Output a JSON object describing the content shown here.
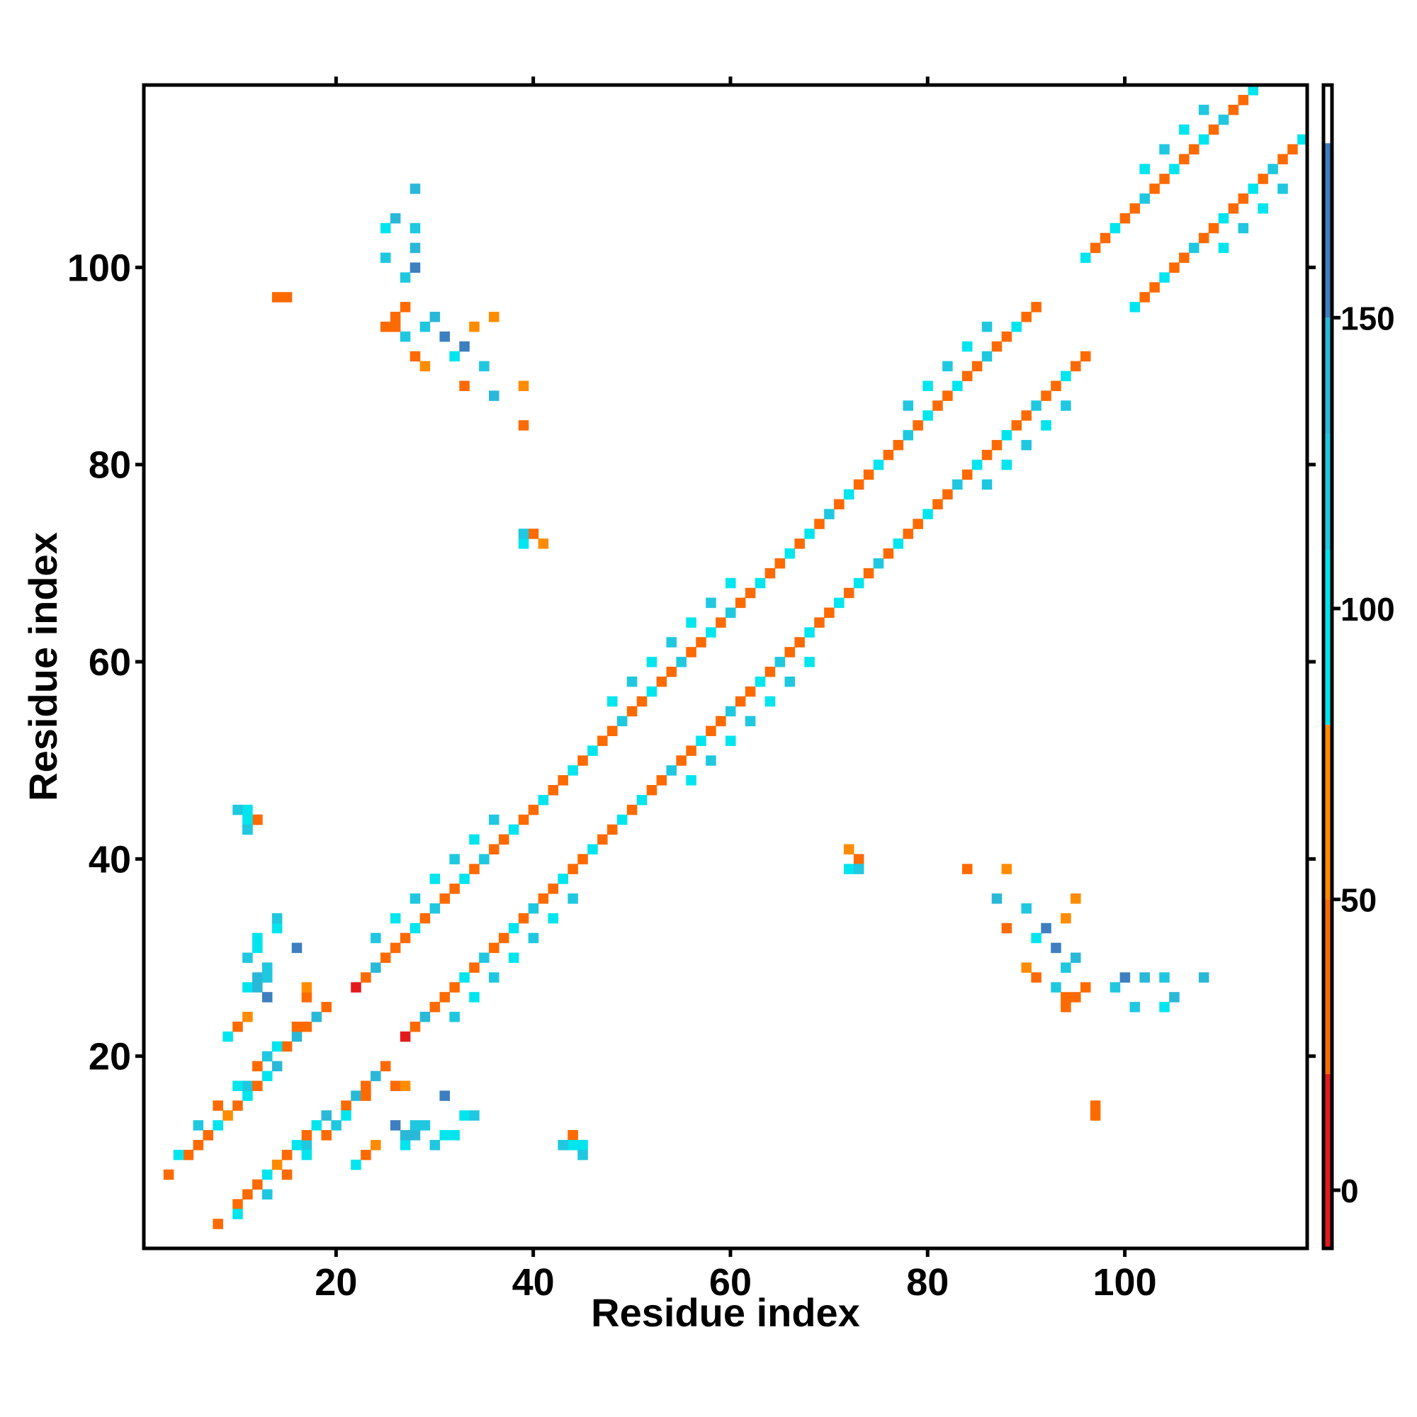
{
  "chart_data": {
    "type": "heatmap",
    "title": "",
    "xlabel": "Residue index",
    "ylabel": "Residue index",
    "xlim": [
      1,
      118
    ],
    "ylim": [
      1,
      118
    ],
    "x_ticks": [
      "20",
      "40",
      "60",
      "80",
      "100"
    ],
    "y_ticks": [
      "20",
      "40",
      "60",
      "80",
      "100"
    ],
    "x_tick_values": [
      20,
      40,
      60,
      80,
      100
    ],
    "y_tick_values": [
      20,
      40,
      60,
      80,
      100
    ],
    "symmetric": true,
    "grid": false,
    "colorbar": {
      "range": [
        -10,
        190
      ],
      "ticks": [
        "0",
        "50",
        "100",
        "150"
      ],
      "tick_values": [
        0,
        50,
        100,
        150
      ],
      "bands": [
        {
          "from": -10,
          "to": 20,
          "color": "#e31a1c"
        },
        {
          "from": 20,
          "to": 50,
          "color": "#fd6a02"
        },
        {
          "from": 50,
          "to": 80,
          "color": "#ff8c00"
        },
        {
          "from": 80,
          "to": 110,
          "color": "#00e5ee"
        },
        {
          "from": 110,
          "to": 130,
          "color": "#1fc8e0"
        },
        {
          "from": 130,
          "to": 150,
          "color": "#2ab8d8"
        },
        {
          "from": 150,
          "to": 180,
          "color": "#3d7fc0"
        },
        {
          "from": 180,
          "to": 190,
          "color": "#ffffff"
        }
      ]
    },
    "cells": [
      [
        3,
        8,
        25
      ],
      [
        5,
        10,
        45
      ],
      [
        6,
        11,
        30
      ],
      [
        7,
        12,
        45
      ],
      [
        8,
        13,
        100
      ],
      [
        9,
        14,
        60
      ],
      [
        10,
        15,
        35
      ],
      [
        11,
        16,
        100
      ],
      [
        11,
        17,
        120
      ],
      [
        12,
        17,
        40
      ],
      [
        13,
        18,
        100
      ],
      [
        14,
        19,
        135
      ],
      [
        13,
        20,
        110
      ],
      [
        15,
        21,
        20
      ],
      [
        16,
        22,
        130
      ],
      [
        17,
        23,
        45
      ],
      [
        18,
        24,
        130
      ],
      [
        19,
        25,
        40
      ],
      [
        22,
        27,
        15
      ],
      [
        23,
        28,
        30
      ],
      [
        24,
        29,
        130
      ],
      [
        25,
        30,
        35
      ],
      [
        26,
        31,
        30
      ],
      [
        27,
        32,
        45
      ],
      [
        28,
        33,
        100
      ],
      [
        29,
        34,
        40
      ],
      [
        30,
        35,
        125
      ],
      [
        31,
        36,
        35
      ],
      [
        32,
        37,
        40
      ],
      [
        33,
        38,
        100
      ],
      [
        34,
        39,
        35
      ],
      [
        35,
        40,
        110
      ],
      [
        36,
        41,
        35
      ],
      [
        37,
        42,
        25
      ],
      [
        38,
        43,
        100
      ],
      [
        39,
        44,
        45
      ],
      [
        40,
        45,
        40
      ],
      [
        41,
        46,
        100
      ],
      [
        42,
        47,
        35
      ],
      [
        43,
        48,
        45
      ],
      [
        44,
        49,
        100
      ],
      [
        45,
        50,
        40
      ],
      [
        46,
        51,
        100
      ],
      [
        47,
        52,
        30
      ],
      [
        48,
        53,
        35
      ],
      [
        49,
        54,
        110
      ],
      [
        50,
        55,
        40
      ],
      [
        51,
        56,
        35
      ],
      [
        52,
        57,
        100
      ],
      [
        53,
        58,
        35
      ],
      [
        54,
        59,
        40
      ],
      [
        55,
        60,
        120
      ],
      [
        56,
        61,
        35
      ],
      [
        57,
        62,
        40
      ],
      [
        58,
        63,
        100
      ],
      [
        59,
        64,
        35
      ],
      [
        60,
        65,
        110
      ],
      [
        61,
        66,
        40
      ],
      [
        62,
        67,
        35
      ],
      [
        63,
        68,
        100
      ],
      [
        64,
        69,
        40
      ],
      [
        65,
        70,
        35
      ],
      [
        66,
        71,
        100
      ],
      [
        67,
        72,
        20
      ],
      [
        68,
        73,
        100
      ],
      [
        69,
        74,
        35
      ],
      [
        70,
        75,
        110
      ],
      [
        71,
        76,
        40
      ],
      [
        72,
        77,
        100
      ],
      [
        73,
        78,
        35
      ],
      [
        74,
        79,
        40
      ],
      [
        75,
        80,
        100
      ],
      [
        76,
        81,
        35
      ],
      [
        77,
        82,
        40
      ],
      [
        78,
        83,
        110
      ],
      [
        79,
        84,
        35
      ],
      [
        80,
        85,
        100
      ],
      [
        81,
        86,
        40
      ],
      [
        82,
        87,
        35
      ],
      [
        83,
        88,
        100
      ],
      [
        84,
        89,
        40
      ],
      [
        85,
        90,
        35
      ],
      [
        86,
        91,
        110
      ],
      [
        87,
        92,
        40
      ],
      [
        88,
        93,
        35
      ],
      [
        89,
        94,
        100
      ],
      [
        90,
        95,
        40
      ],
      [
        91,
        96,
        20
      ],
      [
        96,
        101,
        100
      ],
      [
        97,
        102,
        35
      ],
      [
        98,
        103,
        40
      ],
      [
        99,
        104,
        100
      ],
      [
        100,
        105,
        20
      ],
      [
        101,
        106,
        35
      ],
      [
        102,
        107,
        110
      ],
      [
        103,
        108,
        45
      ],
      [
        104,
        109,
        40
      ],
      [
        105,
        110,
        100
      ],
      [
        106,
        111,
        35
      ],
      [
        107,
        112,
        40
      ],
      [
        108,
        113,
        100
      ],
      [
        109,
        114,
        35
      ],
      [
        110,
        115,
        110
      ],
      [
        111,
        116,
        40
      ],
      [
        112,
        117,
        35
      ],
      [
        113,
        118,
        100
      ],
      [
        4,
        10,
        100
      ],
      [
        6,
        13,
        110
      ],
      [
        8,
        15,
        35
      ],
      [
        10,
        17,
        100
      ],
      [
        12,
        19,
        30
      ],
      [
        14,
        21,
        100
      ],
      [
        16,
        23,
        45
      ],
      [
        24,
        32,
        110
      ],
      [
        26,
        34,
        100
      ],
      [
        28,
        36,
        110
      ],
      [
        30,
        38,
        100
      ],
      [
        32,
        40,
        110
      ],
      [
        34,
        42,
        100
      ],
      [
        36,
        44,
        110
      ],
      [
        48,
        56,
        100
      ],
      [
        50,
        58,
        110
      ],
      [
        52,
        60,
        100
      ],
      [
        54,
        62,
        110
      ],
      [
        56,
        64,
        100
      ],
      [
        58,
        66,
        110
      ],
      [
        60,
        68,
        100
      ],
      [
        78,
        86,
        110
      ],
      [
        80,
        88,
        100
      ],
      [
        82,
        90,
        110
      ],
      [
        84,
        92,
        100
      ],
      [
        86,
        94,
        110
      ],
      [
        102,
        110,
        100
      ],
      [
        104,
        112,
        110
      ],
      [
        106,
        114,
        100
      ],
      [
        108,
        116,
        110
      ],
      [
        11,
        27,
        100
      ],
      [
        12,
        28,
        130
      ],
      [
        11,
        30,
        110
      ],
      [
        12,
        31,
        100
      ],
      [
        13,
        28,
        120
      ],
      [
        14,
        33,
        100
      ],
      [
        16,
        31,
        150
      ],
      [
        11,
        43,
        100
      ],
      [
        12,
        44,
        40
      ],
      [
        11,
        45,
        100
      ],
      [
        13,
        26,
        160
      ],
      [
        12,
        27,
        130
      ],
      [
        13,
        29,
        110
      ],
      [
        12,
        32,
        100
      ],
      [
        14,
        34,
        120
      ],
      [
        25,
        94,
        40
      ],
      [
        26,
        95,
        45
      ],
      [
        27,
        93,
        110
      ],
      [
        28,
        91,
        40
      ],
      [
        29,
        94,
        110
      ],
      [
        30,
        95,
        130
      ],
      [
        31,
        93,
        150
      ],
      [
        32,
        91,
        100
      ],
      [
        33,
        92,
        150
      ],
      [
        34,
        94,
        60
      ],
      [
        35,
        90,
        110
      ],
      [
        36,
        95,
        60
      ],
      [
        29,
        90,
        60
      ],
      [
        33,
        88,
        40
      ],
      [
        36,
        87,
        130
      ],
      [
        39,
        84,
        45
      ],
      [
        39,
        88,
        60
      ],
      [
        26,
        94,
        45
      ],
      [
        27,
        96,
        45
      ],
      [
        25,
        104,
        100
      ],
      [
        26,
        105,
        130
      ],
      [
        28,
        104,
        110
      ],
      [
        28,
        102,
        130
      ],
      [
        27,
        99,
        110
      ],
      [
        25,
        101,
        110
      ],
      [
        28,
        100,
        160
      ],
      [
        28,
        108,
        130
      ],
      [
        14,
        97,
        45
      ],
      [
        15,
        97,
        45
      ],
      [
        39,
        72,
        100
      ],
      [
        40,
        73,
        40
      ],
      [
        41,
        72,
        60
      ],
      [
        39,
        73,
        110
      ],
      [
        26,
        17,
        40
      ],
      [
        27,
        17,
        60
      ],
      [
        22,
        9,
        100
      ],
      [
        23,
        10,
        45
      ],
      [
        24,
        11,
        60
      ],
      [
        44,
        12,
        40
      ],
      [
        44,
        11,
        100
      ],
      [
        45,
        10,
        110
      ],
      [
        43,
        11,
        110
      ]
    ]
  },
  "colors": {
    "axis": "#000000",
    "background": "#ffffff"
  }
}
